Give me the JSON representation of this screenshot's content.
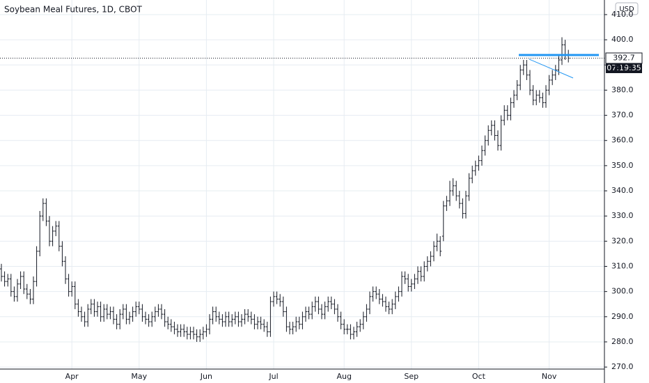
{
  "chart_data": {
    "type": "ohlc",
    "title": "Soybean Meal Futures, 1D, CBOT",
    "currency": "USD",
    "countdown": "07:19:35",
    "color": "#131722",
    "grid": true,
    "categories": [
      null,
      null,
      null,
      null,
      null,
      null,
      null,
      null,
      null,
      null,
      null,
      null,
      null,
      null,
      null,
      null,
      null,
      null,
      null,
      null,
      null,
      null,
      "Apr",
      null,
      null,
      null,
      null,
      null,
      null,
      null,
      null,
      null,
      null,
      null,
      null,
      null,
      null,
      null,
      null,
      null,
      null,
      null,
      null,
      "May",
      null,
      null,
      null,
      null,
      null,
      null,
      null,
      null,
      null,
      null,
      null,
      null,
      null,
      null,
      null,
      null,
      null,
      null,
      null,
      null,
      "Jun",
      null,
      null,
      null,
      null,
      null,
      null,
      null,
      null,
      null,
      null,
      null,
      null,
      null,
      null,
      null,
      null,
      null,
      null,
      null,
      null,
      "Jul",
      null,
      null,
      null,
      null,
      null,
      null,
      null,
      null,
      null,
      null,
      null,
      null,
      null,
      null,
      null,
      null,
      null,
      null,
      null,
      null,
      null,
      "Aug",
      null,
      null,
      null,
      null,
      null,
      null,
      null,
      null,
      null,
      null,
      null,
      null,
      null,
      null,
      null,
      null,
      null,
      null,
      null,
      null,
      "Sep",
      null,
      null,
      null,
      null,
      null,
      null,
      null,
      null,
      null,
      null,
      null,
      null,
      null,
      null,
      null,
      null,
      null,
      null,
      null,
      null,
      "Oct",
      null,
      null,
      null,
      null,
      null,
      null,
      null,
      null,
      null,
      null,
      null,
      null,
      null,
      null,
      null,
      null,
      null,
      null,
      null,
      null,
      null,
      "Nov",
      null,
      null,
      null,
      null,
      null,
      null
    ],
    "open": [
      309,
      306,
      304,
      305,
      300,
      298,
      303,
      306,
      301,
      299,
      297,
      304,
      316,
      330,
      335,
      328,
      320,
      324,
      326,
      318,
      312,
      305,
      300,
      302,
      295,
      292,
      290,
      288,
      293,
      295,
      292,
      294,
      290,
      293,
      291,
      292,
      289,
      287,
      291,
      293,
      289,
      290,
      292,
      294,
      293,
      290,
      289,
      288,
      290,
      292,
      293,
      291,
      288,
      287,
      286,
      285,
      284,
      285,
      284,
      283,
      284,
      283,
      282,
      283,
      284,
      285,
      289,
      292,
      290,
      289,
      288,
      290,
      288,
      289,
      290,
      288,
      289,
      291,
      290,
      289,
      287,
      288,
      287,
      286,
      284,
      296,
      298,
      297,
      296,
      292,
      286,
      285,
      286,
      288,
      287,
      290,
      292,
      291,
      294,
      296,
      293,
      291,
      294,
      296,
      295,
      293,
      290,
      287,
      285,
      285,
      283,
      284,
      286,
      287,
      290,
      293,
      298,
      300,
      299,
      297,
      296,
      294,
      293,
      295,
      298,
      300,
      306,
      305,
      302,
      303,
      305,
      308,
      306,
      310,
      312,
      314,
      318,
      320,
      322,
      334,
      336,
      340,
      342,
      338,
      335,
      331,
      338,
      345,
      348,
      350,
      352,
      356,
      360,
      364,
      366,
      362,
      358,
      368,
      372,
      370,
      375,
      378,
      382,
      388,
      390,
      386,
      380,
      376,
      378,
      377,
      375,
      380,
      384,
      386,
      388,
      392,
      398,
      394
    ],
    "high": [
      311,
      308,
      307,
      307,
      302,
      305,
      308,
      308,
      303,
      301,
      306,
      318,
      332,
      337,
      337,
      330,
      326,
      328,
      328,
      320,
      314,
      307,
      304,
      304,
      297,
      294,
      292,
      295,
      297,
      297,
      296,
      296,
      295,
      295,
      294,
      294,
      291,
      293,
      295,
      295,
      292,
      294,
      296,
      296,
      295,
      292,
      291,
      292,
      294,
      295,
      295,
      293,
      290,
      289,
      288,
      287,
      287,
      287,
      286,
      286,
      286,
      285,
      285,
      286,
      287,
      291,
      294,
      294,
      292,
      291,
      292,
      292,
      291,
      292,
      292,
      291,
      293,
      293,
      292,
      291,
      290,
      290,
      289,
      288,
      298,
      300,
      300,
      299,
      298,
      294,
      288,
      288,
      290,
      290,
      292,
      294,
      294,
      296,
      298,
      298,
      295,
      296,
      298,
      298,
      297,
      295,
      292,
      289,
      287,
      287,
      286,
      288,
      289,
      292,
      295,
      300,
      302,
      302,
      301,
      299,
      298,
      296,
      297,
      300,
      302,
      308,
      308,
      307,
      305,
      307,
      310,
      310,
      312,
      314,
      316,
      320,
      323,
      322,
      336,
      338,
      344,
      345,
      344,
      340,
      337,
      340,
      347,
      350,
      352,
      354,
      358,
      362,
      366,
      368,
      368,
      364,
      370,
      374,
      374,
      377,
      380,
      384,
      390,
      392,
      392,
      388,
      382,
      380,
      380,
      379,
      382,
      386,
      388,
      390,
      394,
      401,
      400,
      396
    ],
    "low": [
      304,
      302,
      302,
      298,
      296,
      296,
      301,
      299,
      297,
      295,
      295,
      302,
      314,
      328,
      326,
      318,
      318,
      322,
      316,
      310,
      303,
      298,
      298,
      293,
      290,
      288,
      286,
      286,
      291,
      290,
      290,
      288,
      288,
      289,
      289,
      287,
      285,
      285,
      289,
      287,
      287,
      288,
      290,
      291,
      288,
      287,
      286,
      286,
      288,
      290,
      289,
      286,
      285,
      284,
      283,
      282,
      282,
      282,
      281,
      281,
      281,
      280,
      280,
      281,
      282,
      283,
      287,
      288,
      287,
      286,
      286,
      286,
      286,
      287,
      286,
      286,
      287,
      288,
      287,
      285,
      285,
      285,
      284,
      282,
      282,
      294,
      295,
      294,
      290,
      284,
      283,
      283,
      284,
      285,
      285,
      288,
      289,
      289,
      292,
      291,
      289,
      289,
      292,
      293,
      291,
      288,
      285,
      283,
      283,
      281,
      281,
      282,
      284,
      285,
      288,
      291,
      296,
      297,
      295,
      294,
      292,
      291,
      291,
      293,
      296,
      298,
      303,
      300,
      300,
      301,
      303,
      304,
      304,
      308,
      310,
      312,
      316,
      314,
      320,
      332,
      334,
      338,
      336,
      333,
      329,
      329,
      336,
      343,
      346,
      348,
      350,
      354,
      358,
      362,
      360,
      356,
      356,
      366,
      368,
      368,
      373,
      376,
      380,
      386,
      384,
      378,
      374,
      374,
      375,
      373,
      373,
      378,
      382,
      384,
      386,
      390,
      392,
      391
    ],
    "close": [
      306,
      304,
      305,
      300,
      298,
      303,
      306,
      301,
      299,
      297,
      304,
      316,
      330,
      335,
      328,
      320,
      324,
      326,
      318,
      312,
      305,
      300,
      302,
      295,
      292,
      290,
      288,
      293,
      295,
      292,
      294,
      290,
      293,
      291,
      292,
      289,
      287,
      291,
      293,
      289,
      290,
      292,
      294,
      293,
      290,
      289,
      288,
      290,
      292,
      293,
      291,
      288,
      287,
      286,
      285,
      284,
      285,
      284,
      283,
      284,
      283,
      282,
      283,
      284,
      285,
      289,
      292,
      290,
      289,
      288,
      290,
      288,
      289,
      290,
      288,
      289,
      291,
      290,
      289,
      287,
      288,
      287,
      286,
      284,
      296,
      298,
      297,
      296,
      292,
      286,
      285,
      286,
      288,
      287,
      290,
      292,
      291,
      294,
      296,
      293,
      291,
      294,
      296,
      295,
      293,
      290,
      287,
      285,
      285,
      283,
      284,
      286,
      287,
      290,
      293,
      298,
      300,
      299,
      297,
      296,
      294,
      293,
      295,
      298,
      300,
      306,
      305,
      302,
      303,
      305,
      308,
      306,
      310,
      312,
      314,
      318,
      320,
      316,
      334,
      336,
      340,
      342,
      338,
      335,
      331,
      338,
      345,
      348,
      350,
      352,
      356,
      360,
      364,
      366,
      362,
      358,
      368,
      372,
      370,
      375,
      378,
      382,
      388,
      390,
      386,
      380,
      376,
      378,
      377,
      375,
      380,
      384,
      386,
      388,
      392,
      398,
      394,
      392.7
    ],
    "ylim": [
      269.2,
      415.8
    ],
    "yticks": [
      {
        "value": 270,
        "label": "270.0"
      },
      {
        "value": 280,
        "label": "280.0"
      },
      {
        "value": 290,
        "label": "290.0"
      },
      {
        "value": 300,
        "label": "300.0"
      },
      {
        "value": 310,
        "label": "310.0"
      },
      {
        "value": 320,
        "label": "320.0"
      },
      {
        "value": 330,
        "label": "330.0"
      },
      {
        "value": 340,
        "label": "340.0"
      },
      {
        "value": 350,
        "label": "350.0"
      },
      {
        "value": 360,
        "label": "360.0"
      },
      {
        "value": 370,
        "label": "370.0"
      },
      {
        "value": 380,
        "label": "380.0"
      },
      {
        "value": 390,
        "label": "390.0"
      },
      {
        "value": 400,
        "label": "400.0"
      },
      {
        "value": 410,
        "label": "410.0"
      }
    ]
  }
}
